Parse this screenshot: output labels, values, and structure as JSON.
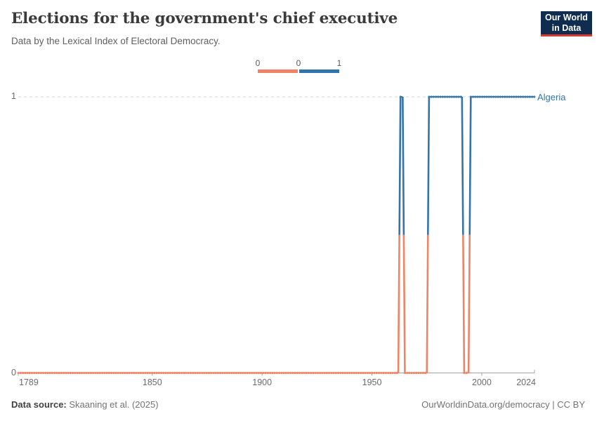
{
  "header": {
    "title": "Elections for the government's chief executive",
    "subtitle": "Data by the Lexical Index of Electoral Democracy.",
    "logo_line1": "Our World",
    "logo_line2": "in Data",
    "logo_bg": "#102d50",
    "logo_accent": "#d73c32"
  },
  "legend": {
    "labels": [
      "0",
      "0",
      "1"
    ]
  },
  "chart_data": {
    "type": "line",
    "title": "Elections for the government's chief executive",
    "subtitle": "Data by the Lexical Index of Electoral Democracy.",
    "entity": "Algeria",
    "x": {
      "min": 1789,
      "max": 2024,
      "ticks": [
        1789,
        1850,
        1900,
        1950,
        2000,
        2024
      ]
    },
    "y": {
      "min": 0,
      "max": 1,
      "ticks": [
        0,
        1
      ]
    },
    "grid": "dashed horizontal gridline at y=1, solid axis at y=0",
    "legend_position": "top-center",
    "value_colors": {
      "0": "#ee8465",
      "1": "#3274ab"
    },
    "series": [
      {
        "name": "Algeria",
        "runs": [
          {
            "start": 1789,
            "end": 1962,
            "value": 0
          },
          {
            "start": 1963,
            "end": 1964,
            "value": 1
          },
          {
            "start": 1965,
            "end": 1975,
            "value": 0
          },
          {
            "start": 1976,
            "end": 1991,
            "value": 1
          },
          {
            "start": 1992,
            "end": 1994,
            "value": 0
          },
          {
            "start": 1995,
            "end": 2024,
            "value": 1
          }
        ]
      }
    ]
  },
  "footer": {
    "source_label": "Data source:",
    "source_text": " Skaaning et al. (2025)",
    "right_text": "OurWorldinData.org/democracy | CC BY"
  },
  "colors": {
    "value0": "#ee8465",
    "value1": "#3274ab",
    "gridline": "#d6d6d6",
    "axis": "#a3a3a3"
  }
}
